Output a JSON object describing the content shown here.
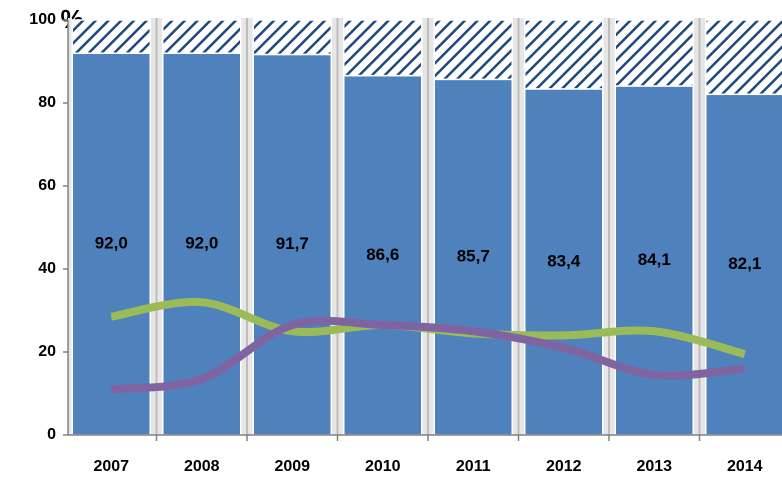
{
  "chart_data": {
    "type": "bar",
    "stacked": true,
    "ylabel": "%",
    "categories": [
      "2007",
      "2008",
      "2009",
      "2010",
      "2011",
      "2012",
      "2013",
      "2014"
    ],
    "series": [
      {
        "type": "bar",
        "color": "#4f81bd",
        "values": [
          92.0,
          92.0,
          91.7,
          86.6,
          85.7,
          83.4,
          84.1,
          82.1
        ],
        "value_labels": [
          "92,0",
          "92,0",
          "91,7",
          "86,6",
          "85,7",
          "83,4",
          "84,1",
          "82,1"
        ]
      },
      {
        "type": "bar",
        "color": "#1f497d",
        "hatch": true,
        "values": [
          8.0,
          8.0,
          8.3,
          13.4,
          14.3,
          16.6,
          15.9,
          17.9
        ]
      },
      {
        "type": "line",
        "color": "#9bbb59",
        "values": [
          28.5,
          32,
          25,
          26.5,
          24.5,
          24,
          25,
          19.5
        ]
      },
      {
        "type": "line",
        "color": "#8064a2",
        "values": [
          11,
          13.5,
          26.5,
          26.5,
          25,
          21,
          14.5,
          16
        ]
      }
    ],
    "ylim": [
      0,
      100
    ],
    "yticks": [
      0,
      20,
      40,
      60,
      80,
      100
    ]
  }
}
